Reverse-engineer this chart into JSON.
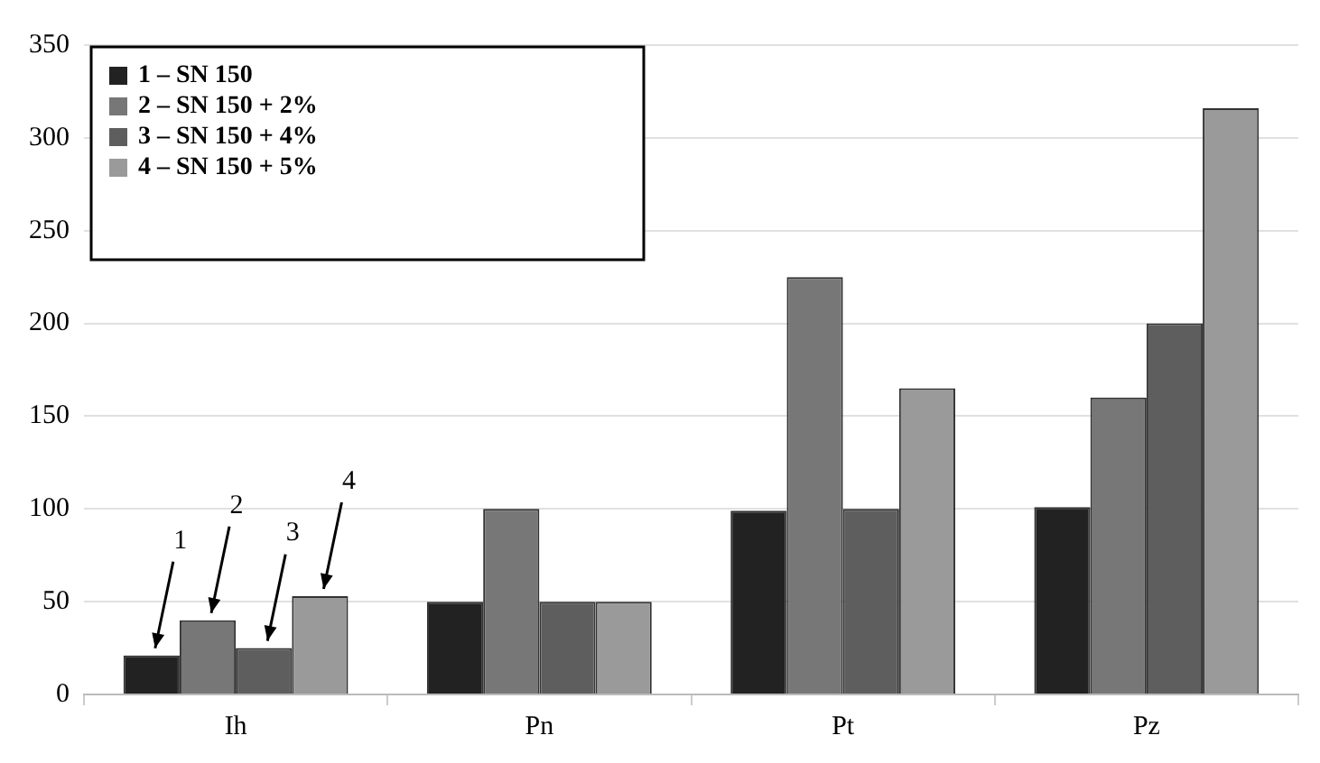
{
  "chart_data": {
    "type": "bar",
    "categories": [
      "Ih",
      "Pn",
      "Pt",
      "Pz"
    ],
    "series": [
      {
        "name": "1 – SN 150",
        "color": "#222222",
        "values": [
          21,
          50,
          99,
          101
        ]
      },
      {
        "name": "2 – SN 150 + 2%",
        "color": "#777777",
        "values": [
          40,
          100,
          225,
          160
        ]
      },
      {
        "name": "3 – SN 150 + 4%",
        "color": "#5e5e5e",
        "values": [
          25,
          50,
          100,
          200
        ]
      },
      {
        "name": "4 – SN 150 + 5%",
        "color": "#9a9a9a",
        "values": [
          53,
          50,
          165,
          316
        ]
      }
    ],
    "annotations": [
      "1",
      "2",
      "3",
      "4"
    ],
    "ylim": [
      0,
      350
    ],
    "yticks": [
      0,
      50,
      100,
      150,
      200,
      250,
      300,
      350
    ],
    "grid": "y",
    "legend": "top left"
  }
}
